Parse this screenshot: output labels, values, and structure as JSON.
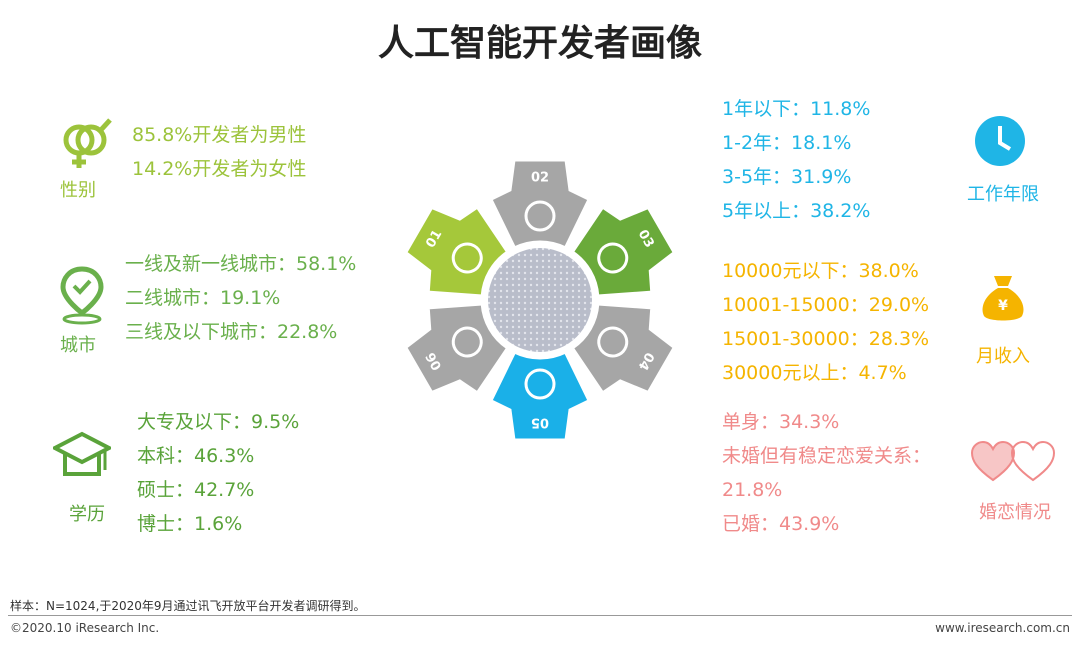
{
  "header": {
    "title": "人工智能开发者画像"
  },
  "left": [
    {
      "label": "性别",
      "lines": [
        "85.8%开发者为男性",
        "14.2%开发者为女性"
      ]
    },
    {
      "label": "城市",
      "lines": [
        "一线及新一线城市：58.1%",
        "二线城市：19.1%",
        "三线及以下城市：22.8%"
      ]
    },
    {
      "label": "学历",
      "lines": [
        "大专及以下：9.5%",
        "本科：46.3%",
        "硕士：42.7%",
        "博士：1.6%"
      ]
    }
  ],
  "right": [
    {
      "label": "工作年限",
      "lines": [
        "1年以下：11.8%",
        "1-2年：18.1%",
        "3-5年：31.9%",
        "5年以上：38.2%"
      ]
    },
    {
      "label": "月收入",
      "lines": [
        "10000元以下：38.0%",
        "10001-15000：29.0%",
        "15001-30000：28.3%",
        "30000元以上：4.7%"
      ]
    },
    {
      "label": "婚恋情况",
      "lines": [
        "单身：34.3%",
        "未婚但有稳定恋爱关系：",
        "21.8%",
        "已婚：43.9%"
      ]
    }
  ],
  "wheel": [
    "01",
    "02",
    "03",
    "04",
    "05",
    "06"
  ],
  "footer": {
    "note": "样本：N=1024,于2020年9月通过讯飞开放平台开发者调研得到。",
    "copyright": "©2020.10 iResearch Inc.",
    "website": "www.iresearch.com.cn"
  }
}
